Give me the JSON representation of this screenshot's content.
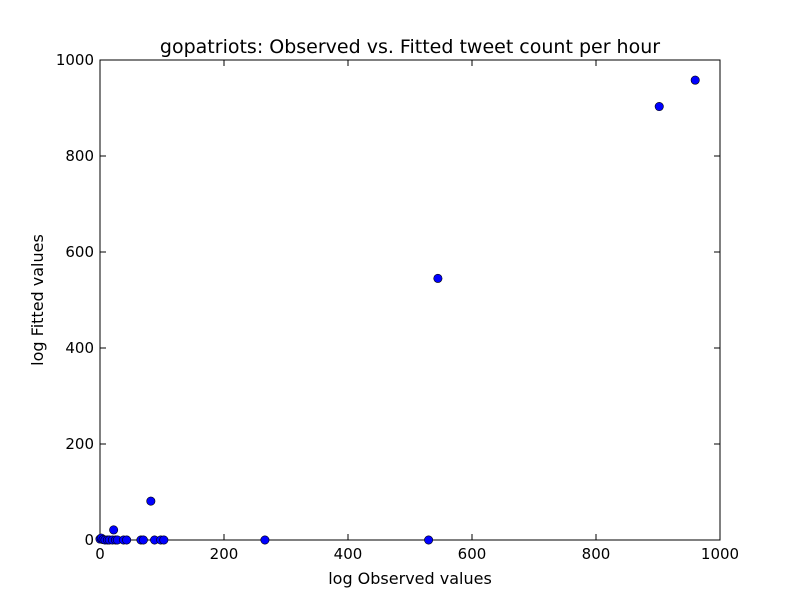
{
  "chart_data": {
    "type": "scatter",
    "title": "gopatriots: Observed vs. Fitted tweet count per hour",
    "xlabel": "log Observed values",
    "ylabel": "log Fitted values",
    "xlim": [
      0,
      1000
    ],
    "ylim": [
      0,
      1000
    ],
    "xticks": [
      "0",
      "200",
      "400",
      "600",
      "800",
      "1000"
    ],
    "yticks": [
      "0",
      "200",
      "400",
      "600",
      "800",
      "1000"
    ],
    "grid": false,
    "legend": "none",
    "marker_color": "#0000ff",
    "points": [
      {
        "x": 0,
        "y": 2
      },
      {
        "x": 2,
        "y": 4
      },
      {
        "x": 5,
        "y": 1
      },
      {
        "x": 8,
        "y": 0
      },
      {
        "x": 12,
        "y": 0
      },
      {
        "x": 15,
        "y": 0
      },
      {
        "x": 20,
        "y": 0
      },
      {
        "x": 22,
        "y": 21
      },
      {
        "x": 25,
        "y": 0
      },
      {
        "x": 28,
        "y": 0
      },
      {
        "x": 38,
        "y": 0
      },
      {
        "x": 43,
        "y": 0
      },
      {
        "x": 66,
        "y": 0
      },
      {
        "x": 70,
        "y": 0
      },
      {
        "x": 82,
        "y": 81
      },
      {
        "x": 88,
        "y": 0
      },
      {
        "x": 98,
        "y": 0
      },
      {
        "x": 103,
        "y": 0
      },
      {
        "x": 266,
        "y": 0
      },
      {
        "x": 530,
        "y": 0
      },
      {
        "x": 545,
        "y": 545
      },
      {
        "x": 902,
        "y": 903
      },
      {
        "x": 960,
        "y": 958
      }
    ]
  }
}
